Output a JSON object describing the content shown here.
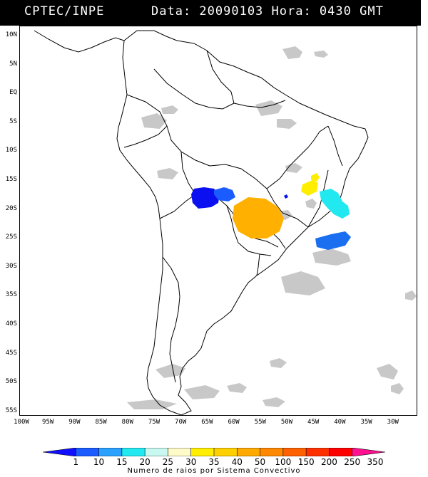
{
  "header": {
    "source": "CPTEC/INPE",
    "datetime": "Data: 20090103 Hora: 0430 GMT"
  },
  "map": {
    "lat_labels": [
      "10N",
      "5N",
      "EQ",
      "5S",
      "10S",
      "15S",
      "20S",
      "25S",
      "30S",
      "35S",
      "40S",
      "45S",
      "50S",
      "55S"
    ],
    "lon_labels": [
      "100W",
      "95W",
      "90W",
      "85W",
      "80W",
      "75W",
      "70W",
      "65W",
      "60W",
      "55W",
      "50W",
      "45W",
      "40W",
      "35W",
      "30W"
    ],
    "cloud_color": "#c8c8c8",
    "coast_color": "#000000"
  },
  "colorbar": {
    "title": "Numero de raios por Sistema Convectivo",
    "labels": [
      "1",
      "10",
      "15",
      "20",
      "25",
      "30",
      "35",
      "40",
      "50",
      "100",
      "150",
      "200",
      "250",
      "350"
    ],
    "colors": [
      "#1010ff",
      "#1a5cff",
      "#2aa0ff",
      "#22e8f0",
      "#c8f8f0",
      "#fffbc8",
      "#ffee00",
      "#ffd000",
      "#ffaa00",
      "#ff8800",
      "#ff6000",
      "#ff3000",
      "#ff0000",
      "#ff1090"
    ]
  },
  "systems": [
    {
      "color": "#0a10f0",
      "value_class": "1"
    },
    {
      "color": "#1a5cff",
      "value_class": "10"
    },
    {
      "color": "#ffb000",
      "value_class": "50-100"
    },
    {
      "color": "#ffee00",
      "value_class": "35"
    },
    {
      "color": "#22e8f0",
      "value_class": "20-25"
    },
    {
      "color": "#1a6ef0",
      "value_class": "10"
    }
  ]
}
